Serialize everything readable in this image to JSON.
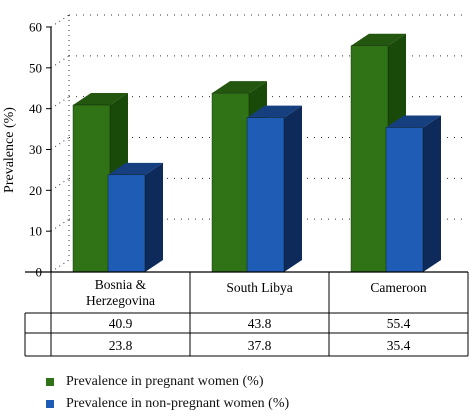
{
  "chart_data": {
    "type": "bar",
    "ylabel": "Prevalence (%)",
    "xlabel": "",
    "ylim": [
      0,
      60
    ],
    "yticks": [
      0,
      10,
      20,
      30,
      40,
      50,
      60
    ],
    "grid": "dotted horizontal",
    "categories": [
      "Bosnia & Herzegovina",
      "South Libya",
      "Cameroon"
    ],
    "category_lines": [
      [
        "Bosnia &",
        "Herzegovina"
      ],
      [
        "South Libya"
      ],
      [
        "Cameroon"
      ]
    ],
    "series": [
      {
        "name": "Prevalence in pregnant women (%)",
        "values": [
          40.9,
          43.8,
          55.4
        ],
        "value_labels": [
          "40.9",
          "43.8",
          "55.4"
        ],
        "color": "#2f7316",
        "side_color": "#1a4a09",
        "top_color": "#23560f"
      },
      {
        "name": "Prevalence in non-pregnant women (%)",
        "values": [
          23.8,
          37.8,
          35.4
        ],
        "value_labels": [
          "23.8",
          "37.8",
          "35.4"
        ],
        "color": "#1f5cb5",
        "side_color": "#0d2a5a",
        "top_color": "#163f80"
      }
    ],
    "legend_position": "bottom"
  }
}
